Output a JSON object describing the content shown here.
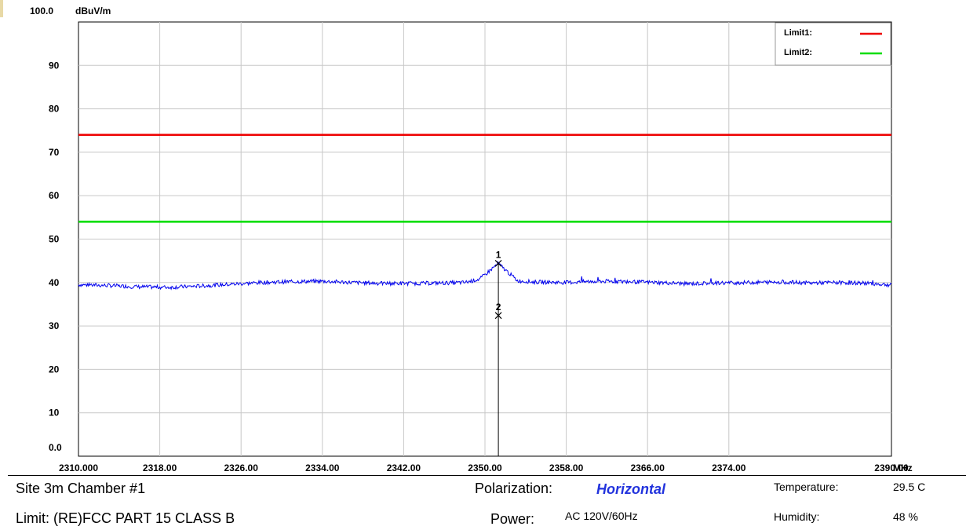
{
  "chart_data": {
    "type": "line",
    "y_unit": "dBuV/m",
    "x_unit": "MHz",
    "xlim": [
      2310.0,
      2390.0
    ],
    "ylim": [
      0,
      100
    ],
    "y_top_label": "100.0",
    "y_tick_values": [
      90,
      80,
      70,
      60,
      50,
      40,
      30,
      20,
      10
    ],
    "y_tick_labels": [
      "90",
      "80",
      "70",
      "60",
      "50",
      "40",
      "30",
      "20",
      "10",
      "0.0"
    ],
    "x_ticks": [
      {
        "value": 2310.0,
        "label": "2310.000"
      },
      {
        "value": 2318.0,
        "label": "2318.00"
      },
      {
        "value": 2326.0,
        "label": "2326.00"
      },
      {
        "value": 2334.0,
        "label": "2334.00"
      },
      {
        "value": 2342.0,
        "label": "2342.00"
      },
      {
        "value": 2350.0,
        "label": "2350.00"
      },
      {
        "value": 2358.0,
        "label": "2358.00"
      },
      {
        "value": 2366.0,
        "label": "2366.00"
      },
      {
        "value": 2374.0,
        "label": "2374.00"
      },
      {
        "value": 2390.0,
        "label": "2390.00"
      }
    ],
    "grid": true,
    "legend_position": "top-right",
    "limits": [
      {
        "name": "Limit1:",
        "value": 74.0,
        "color": "#ee0000"
      },
      {
        "name": "Limit2:",
        "value": 54.0,
        "color": "#00dd00"
      }
    ],
    "trace": {
      "color": "#0000ee",
      "points": [
        [
          2310,
          39.5
        ],
        [
          2313,
          39.3
        ],
        [
          2316,
          39.0
        ],
        [
          2319,
          38.9
        ],
        [
          2322,
          39.2
        ],
        [
          2325,
          39.6
        ],
        [
          2328,
          40.0
        ],
        [
          2331,
          40.2
        ],
        [
          2334,
          40.3
        ],
        [
          2337,
          40.0
        ],
        [
          2340,
          39.8
        ],
        [
          2343,
          39.8
        ],
        [
          2346,
          39.9
        ],
        [
          2348,
          40.0
        ],
        [
          2349.5,
          40.8
        ],
        [
          2350.5,
          42.8
        ],
        [
          2351.3,
          44.4
        ],
        [
          2352.2,
          42.5
        ],
        [
          2353.2,
          40.4
        ],
        [
          2355,
          40.1
        ],
        [
          2358,
          40.0
        ],
        [
          2361,
          40.3
        ],
        [
          2364,
          40.2
        ],
        [
          2367,
          40.0
        ],
        [
          2370,
          39.7
        ],
        [
          2373,
          39.9
        ],
        [
          2376,
          40.0
        ],
        [
          2379,
          40.1
        ],
        [
          2382,
          39.9
        ],
        [
          2385,
          40.0
        ],
        [
          2388,
          39.8
        ],
        [
          2390,
          39.4
        ]
      ]
    },
    "markers": [
      {
        "label": "1",
        "x": 2351.32,
        "y": 44.4
      },
      {
        "label": "2",
        "x": 2351.32,
        "y": 32.4
      }
    ]
  },
  "info": {
    "site": "Site  3m Chamber #1",
    "limit": "Limit:  (RE)FCC PART 15 CLASS B",
    "polarization_label": "Polarization:",
    "polarization_value": "Horizontal",
    "power_label": "Power:",
    "power_value": "AC 120V/60Hz",
    "temperature_label": "Temperature:",
    "temperature_value": "29.5 C",
    "humidity_label": "Humidity:",
    "humidity_value": "48 %"
  }
}
